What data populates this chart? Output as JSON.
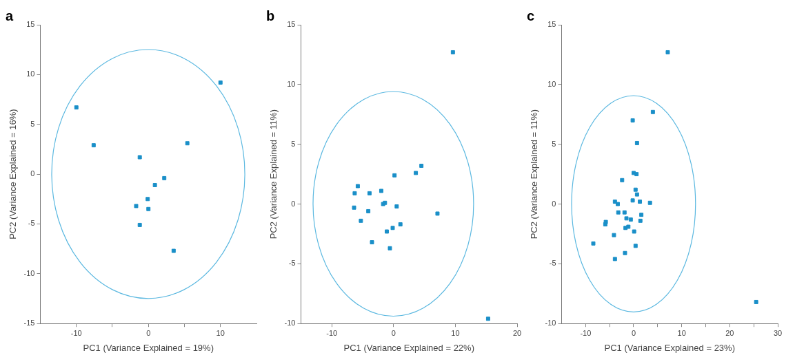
{
  "chart_data": [
    {
      "type": "scatter",
      "title": "a",
      "xlabel": "PC1 (Variance Explained = 19%)",
      "ylabel": "PC2 (Variance Explained = 16%)",
      "xlim": [
        -15,
        15
      ],
      "ylim": [
        -15,
        15
      ],
      "xticks": [
        -10,
        {
          "value": -5,
          "label": null
        },
        0,
        {
          "value": 5,
          "label": null
        },
        10
      ],
      "yticks": [
        -15,
        -10,
        -5,
        0,
        5,
        10,
        15
      ],
      "grid": false,
      "series": [
        {
          "type": "scatter",
          "marker": "square",
          "color": "#1a8fc8",
          "x": [
            -10,
            -7.6,
            -1.2,
            5.4,
            10,
            2.2,
            0.9,
            -0.1,
            -1.7,
            0,
            -1.2,
            3.5
          ],
          "values": [
            6.7,
            2.9,
            1.7,
            3.1,
            9.2,
            -0.4,
            -1.1,
            -2.5,
            -3.2,
            -3.5,
            -5.1,
            -7.7
          ]
        }
      ]
    },
    {
      "type": "scatter",
      "title": "b",
      "xlabel": "PC1 (Variance Explained = 22%)",
      "ylabel": "PC2 (Variance Explained = 11%)",
      "xlim": [
        -15,
        20
      ],
      "ylim": [
        -10,
        15
      ],
      "xticks": [
        -10,
        0,
        10,
        20
      ],
      "yticks": [
        -10,
        -5,
        0,
        5,
        10,
        15
      ],
      "grid": false,
      "series": [
        {
          "type": "scatter",
          "marker": "square",
          "color": "#1a8fc8",
          "x": [
            9.6,
            15.3,
            0.15,
            3.6,
            4.5,
            -5.8,
            -6.3,
            -3.9,
            -2.0,
            -1.7,
            -1.4,
            0.5,
            -6.4,
            -4.1,
            7.1,
            -5.3,
            1.1,
            -0.15,
            -1.1,
            -3.5,
            -0.6
          ],
          "values": [
            12.7,
            -9.6,
            2.4,
            2.6,
            3.2,
            1.5,
            0.9,
            0.9,
            1.1,
            0,
            0.1,
            -0.2,
            -0.3,
            -0.6,
            -0.8,
            -1.4,
            -1.7,
            -2.0,
            -2.3,
            -3.2,
            -3.7
          ]
        }
      ]
    },
    {
      "type": "scatter",
      "title": "c",
      "xlabel": "PC1 (Variance Explained = 23%)",
      "ylabel": "PC2 (Variance Explained = 11%)",
      "xlim": [
        -15,
        30
      ],
      "ylim": [
        -10,
        15
      ],
      "xticks": [
        -10,
        {
          "value": -5,
          "label": null
        },
        0,
        {
          "value": 5,
          "label": null
        },
        10,
        {
          "value": 15,
          "label": null
        },
        20,
        {
          "value": 25,
          "label": null
        },
        30
      ],
      "yticks": [
        -10,
        -5,
        0,
        5,
        10,
        15
      ],
      "grid": false,
      "series": [
        {
          "type": "scatter",
          "marker": "square",
          "color": "#1a8fc8",
          "x": [
            7.1,
            25.5,
            4.0,
            -0.2,
            0.7,
            0,
            0.6,
            -2.4,
            0.4,
            0.7,
            -0.2,
            1.3,
            3.4,
            -3.9,
            -3.3,
            -3.2,
            -1.9,
            -1.5,
            -0.6,
            1.6,
            1.4,
            -5.8,
            -5.9,
            -1.7,
            -1.1,
            0.1,
            -4.1,
            -8.4,
            0.4,
            -1.8,
            -3.9
          ],
          "values": [
            12.7,
            -8.2,
            7.7,
            7.0,
            5.1,
            2.6,
            2.5,
            2.0,
            1.2,
            0.8,
            0.3,
            0.2,
            0.1,
            0.2,
            0,
            -0.7,
            -0.7,
            -1.2,
            -1.3,
            -0.9,
            -1.4,
            -1.5,
            -1.7,
            -2.0,
            -1.9,
            -2.3,
            -2.6,
            -3.3,
            -3.5,
            -4.1,
            -4.6
          ]
        }
      ]
    }
  ]
}
